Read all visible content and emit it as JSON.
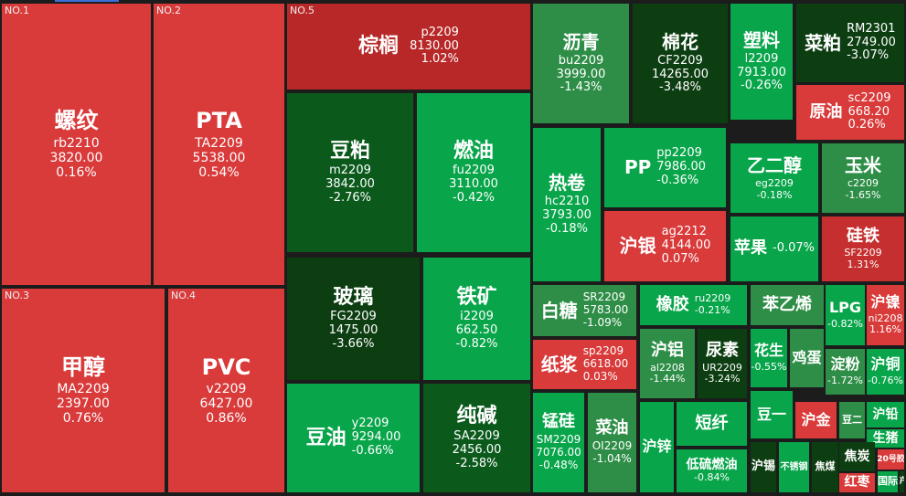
{
  "chart_data": {
    "type": "treemap",
    "title": "",
    "colors": {
      "up": "#d93a3a",
      "up_strong": "#b82828",
      "down_light": "#2db35a",
      "down": "#1f8f3e",
      "down_strong": "#0b5a1c",
      "down_darkest": "#0d3e12"
    },
    "items": [
      {
        "rank": "NO.1",
        "name": "螺纹",
        "code": "rb2210",
        "price": "3820.00",
        "change": "0.16%",
        "change_value": 0.16,
        "color": "#d93a3a"
      },
      {
        "rank": "NO.2",
        "name": "PTA",
        "code": "TA2209",
        "price": "5538.00",
        "change": "0.54%",
        "change_value": 0.54,
        "color": "#d93a3a"
      },
      {
        "rank": "NO.3",
        "name": "甲醇",
        "code": "MA2209",
        "price": "2397.00",
        "change": "0.76%",
        "change_value": 0.76,
        "color": "#d93a3a"
      },
      {
        "rank": "NO.4",
        "name": "PVC",
        "code": "v2209",
        "price": "6427.00",
        "change": "0.86%",
        "change_value": 0.86,
        "color": "#d93a3a"
      },
      {
        "rank": "NO.5",
        "name": "棕榈",
        "code": "p2209",
        "price": "8130.00",
        "change": "1.02%",
        "change_value": 1.02,
        "color": "#b82828"
      },
      {
        "name": "豆粕",
        "code": "m2209",
        "price": "3842.00",
        "change": "-2.76%",
        "change_value": -2.76,
        "color": "#0b5a1c"
      },
      {
        "name": "燃油",
        "code": "fu2209",
        "price": "3110.00",
        "change": "-0.42%",
        "change_value": -0.42,
        "color": "#08a54a"
      },
      {
        "name": "玻璃",
        "code": "FG2209",
        "price": "1475.00",
        "change": "-3.66%",
        "change_value": -3.66,
        "color": "#0d3e12"
      },
      {
        "name": "铁矿",
        "code": "i2209",
        "price": "662.50",
        "change": "-0.82%",
        "change_value": -0.82,
        "color": "#08a54a"
      },
      {
        "name": "豆油",
        "code": "y2209",
        "price": "9294.00",
        "change": "-0.66%",
        "change_value": -0.66,
        "color": "#08a54a"
      },
      {
        "name": "纯碱",
        "code": "SA2209",
        "price": "2456.00",
        "change": "-2.58%",
        "change_value": -2.58,
        "color": "#0b5a1c"
      },
      {
        "name": "沥青",
        "code": "bu2209",
        "price": "3999.00",
        "change": "-1.43%",
        "change_value": -1.43,
        "color": "#2e8e47"
      },
      {
        "name": "棉花",
        "code": "CF2209",
        "price": "14265.00",
        "change": "-3.48%",
        "change_value": -3.48,
        "color": "#0d3e12"
      },
      {
        "name": "塑料",
        "code": "l2209",
        "price": "7913.00",
        "change": "-0.26%",
        "change_value": -0.26,
        "color": "#08a54a"
      },
      {
        "name": "菜粕",
        "code": "RM2301",
        "price": "2749.00",
        "change": "-3.07%",
        "change_value": -3.07,
        "color": "#0d3e12"
      },
      {
        "name": "原油",
        "code": "sc2209",
        "price": "668.20",
        "change": "0.26%",
        "change_value": 0.26,
        "color": "#d93a3a"
      },
      {
        "name": "热卷",
        "code": "hc2210",
        "price": "3793.00",
        "change": "-0.18%",
        "change_value": -0.18,
        "color": "#08a54a"
      },
      {
        "name": "PP",
        "code": "pp2209",
        "price": "7986.00",
        "change": "-0.36%",
        "change_value": -0.36,
        "color": "#08a54a"
      },
      {
        "name": "乙二醇",
        "code": "eg2209",
        "price": "",
        "change": "-0.18%",
        "change_value": -0.18,
        "color": "#08a54a"
      },
      {
        "name": "玉米",
        "code": "c2209",
        "price": "",
        "change": "-1.65%",
        "change_value": -1.65,
        "color": "#2e8e47"
      },
      {
        "name": "沪银",
        "code": "ag2212",
        "price": "4144.00",
        "change": "0.07%",
        "change_value": 0.07,
        "color": "#d93a3a"
      },
      {
        "name": "苹果",
        "code": "",
        "price": "",
        "change": "-0.07%",
        "change_value": -0.07,
        "color": "#08a54a"
      },
      {
        "name": "硅铁",
        "code": "SF2209",
        "price": "",
        "change": "1.31%",
        "change_value": 1.31,
        "color": "#c62f2f"
      },
      {
        "name": "白糖",
        "code": "SR2209",
        "price": "5783.00",
        "change": "-1.09%",
        "change_value": -1.09,
        "color": "#2e8e47"
      },
      {
        "name": "橡胶",
        "code": "ru2209",
        "price": "",
        "change": "-0.21%",
        "change_value": -0.21,
        "color": "#08a54a"
      },
      {
        "name": "苯乙烯",
        "code": "",
        "price": "",
        "change": "",
        "change_value": null,
        "color": "#2e8e47"
      },
      {
        "name": "LPG",
        "code": "",
        "price": "",
        "change": "-0.82%",
        "change_value": -0.82,
        "color": "#08a54a"
      },
      {
        "name": "沪镍",
        "code": "ni2208",
        "price": "",
        "change": "1.16%",
        "change_value": 1.16,
        "color": "#d93a3a"
      },
      {
        "name": "纸浆",
        "code": "sp2209",
        "price": "6618.00",
        "change": "0.03%",
        "change_value": 0.03,
        "color": "#d93a3a"
      },
      {
        "name": "沪铝",
        "code": "al2208",
        "price": "",
        "change": "-1.44%",
        "change_value": -1.44,
        "color": "#2e8e47"
      },
      {
        "name": "尿素",
        "code": "UR2209",
        "price": "",
        "change": "-3.24%",
        "change_value": -3.24,
        "color": "#0d3e12"
      },
      {
        "name": "花生",
        "code": "",
        "price": "",
        "change": "-0.55%",
        "change_value": -0.55,
        "color": "#08a54a"
      },
      {
        "name": "鸡蛋",
        "code": "",
        "price": "",
        "change": "",
        "change_value": null,
        "color": "#2e8e47"
      },
      {
        "name": "淀粉",
        "code": "",
        "price": "",
        "change": "-1.72%",
        "change_value": -1.72,
        "color": "#2e8e47"
      },
      {
        "name": "沪铜",
        "code": "",
        "price": "",
        "change": "-0.76%",
        "change_value": -0.76,
        "color": "#08a54a"
      },
      {
        "name": "锰硅",
        "code": "SM2209",
        "price": "7076.00",
        "change": "-0.48%",
        "change_value": -0.48,
        "color": "#08a54a"
      },
      {
        "name": "菜油",
        "code": "OI2209",
        "price": "",
        "change": "-1.04%",
        "change_value": -1.04,
        "color": "#2e8e47"
      },
      {
        "name": "沪锌",
        "code": "",
        "price": "",
        "change": "",
        "change_value": null,
        "color": "#08a54a"
      },
      {
        "name": "短纤",
        "code": "",
        "price": "",
        "change": "",
        "change_value": null,
        "color": "#08a54a"
      },
      {
        "name": "低硫燃油",
        "code": "",
        "price": "",
        "change": "-0.84%",
        "change_value": -0.84,
        "color": "#08a54a"
      },
      {
        "name": "豆一",
        "code": "",
        "price": "",
        "change": "",
        "change_value": null,
        "color": "#08a54a"
      },
      {
        "name": "沪金",
        "code": "",
        "price": "",
        "change": "",
        "change_value": null,
        "color": "#d93a3a"
      },
      {
        "name": "豆二",
        "code": "",
        "price": "",
        "change": "",
        "change_value": null,
        "color": "#2e8e47"
      },
      {
        "name": "沪铅",
        "code": "",
        "price": "",
        "change": "",
        "change_value": null,
        "color": "#08a54a"
      },
      {
        "name": "生猪",
        "code": "",
        "price": "",
        "change": "",
        "change_value": null,
        "color": "#08a54a"
      },
      {
        "name": "沪锡",
        "code": "",
        "price": "",
        "change": "",
        "change_value": null,
        "color": "#0d3e12"
      },
      {
        "name": "不锈钢",
        "code": "",
        "price": "",
        "change": "",
        "change_value": null,
        "color": "#08a54a"
      },
      {
        "name": "焦煤",
        "code": "",
        "price": "",
        "change": "",
        "change_value": null,
        "color": "#0d3e12"
      },
      {
        "name": "焦炭",
        "code": "",
        "price": "",
        "change": "",
        "change_value": null,
        "color": "#0d3e12"
      },
      {
        "name": "20号胶",
        "code": "",
        "price": "",
        "change": "",
        "change_value": null,
        "color": "#d93a3a"
      },
      {
        "name": "红枣",
        "code": "",
        "price": "",
        "change": "",
        "change_value": null,
        "color": "#d93a3a"
      },
      {
        "name": "国际",
        "code": "",
        "price": "",
        "change": "",
        "change_value": null,
        "color": "#08a54a"
      },
      {
        "name": "沪",
        "code": "",
        "price": "",
        "change": "",
        "change_value": null,
        "color": "#0d3e12"
      }
    ]
  }
}
